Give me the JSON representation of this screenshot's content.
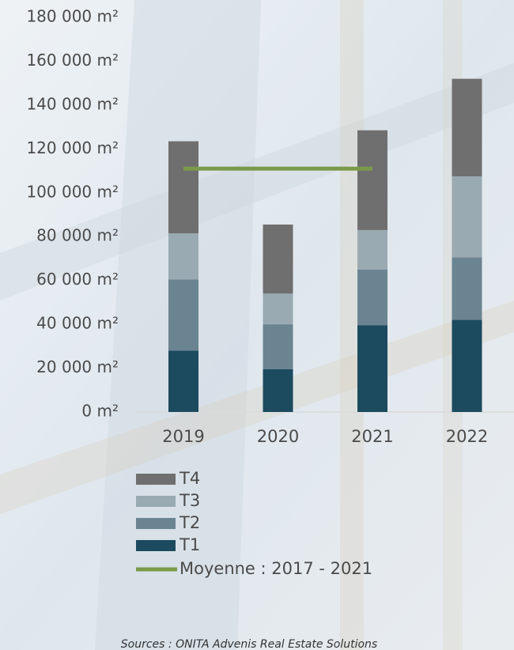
{
  "chart_data": {
    "type": "stacked-bar",
    "categories": [
      "2019",
      "2020",
      "2021",
      "2022"
    ],
    "series": [
      {
        "name": "T1",
        "color": "#1c4a5e",
        "values": [
          28000,
          19500,
          39500,
          42000
        ]
      },
      {
        "name": "T2",
        "color": "#6b8491",
        "values": [
          32500,
          20500,
          25500,
          28500
        ]
      },
      {
        "name": "T3",
        "color": "#9aaab2",
        "values": [
          21000,
          14000,
          18000,
          37000
        ]
      },
      {
        "name": "T4",
        "color": "#6f6f6f",
        "values": [
          42000,
          31500,
          45500,
          44500
        ]
      },
      {
        "name": "Moyenne  : 2017 - 2021",
        "type": "line",
        "color": "#7a9a4a",
        "values": [
          111000,
          111000,
          111000,
          null
        ]
      }
    ],
    "ylim": [
      0,
      180000
    ],
    "yticks": [
      {
        "value": 0,
        "label": "0 m²"
      },
      {
        "value": 20000,
        "label": "20 000 m²"
      },
      {
        "value": 40000,
        "label": "40 000 m²"
      },
      {
        "value": 60000,
        "label": "60 000 m²"
      },
      {
        "value": 80000,
        "label": "80 000 m²"
      },
      {
        "value": 100000,
        "label": "100 000 m²"
      },
      {
        "value": 120000,
        "label": "120 000 m²"
      },
      {
        "value": 140000,
        "label": "140 000 m²"
      },
      {
        "value": 160000,
        "label": "160 000 m²"
      },
      {
        "value": 180000,
        "label": "180 000 m²"
      }
    ],
    "source": "Sources : ONITA Advenis Real Estate Solutions"
  }
}
